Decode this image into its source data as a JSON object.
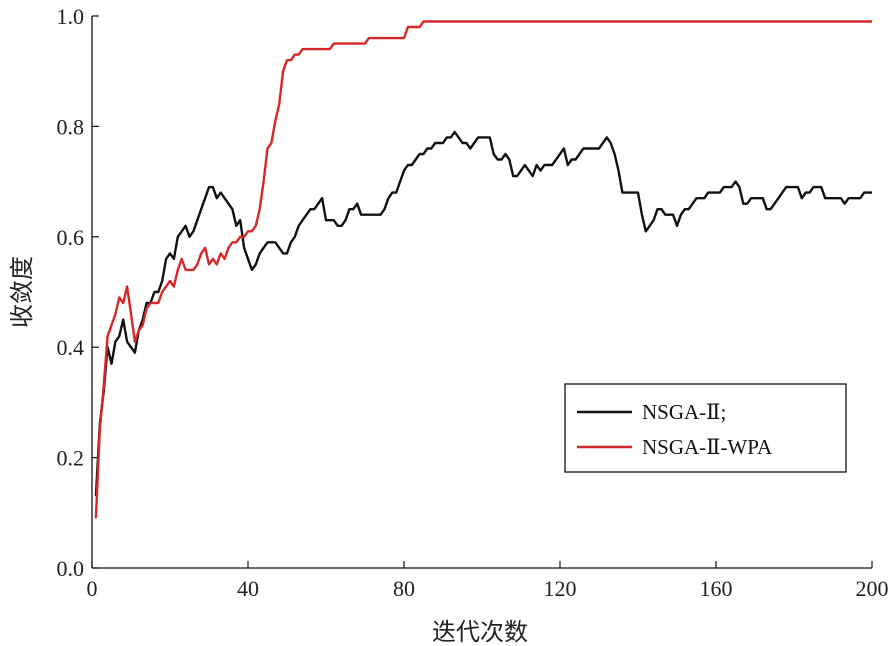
{
  "chart_data": {
    "type": "line",
    "xlabel": "迭代次数",
    "ylabel": "收敛度",
    "xlim": [
      0,
      200
    ],
    "ylim": [
      0,
      1.0
    ],
    "xticks": [
      "0",
      "40",
      "80",
      "120",
      "160",
      "200"
    ],
    "yticks": [
      "0.0",
      "0.2",
      "0.4",
      "0.6",
      "0.8",
      "1.0"
    ],
    "grid": false,
    "legend_position": "lower-right",
    "series": [
      {
        "name": "NSGA-Ⅱ;",
        "color": "#111111",
        "points": [
          [
            1,
            0.13
          ],
          [
            2,
            0.26
          ],
          [
            3,
            0.32
          ],
          [
            4,
            0.4
          ],
          [
            5,
            0.37
          ],
          [
            6,
            0.41
          ],
          [
            7,
            0.42
          ],
          [
            8,
            0.45
          ],
          [
            9,
            0.41
          ],
          [
            10,
            0.4
          ],
          [
            11,
            0.39
          ],
          [
            12,
            0.43
          ],
          [
            13,
            0.45
          ],
          [
            14,
            0.48
          ],
          [
            15,
            0.48
          ],
          [
            16,
            0.5
          ],
          [
            17,
            0.5
          ],
          [
            18,
            0.52
          ],
          [
            19,
            0.56
          ],
          [
            20,
            0.57
          ],
          [
            21,
            0.56
          ],
          [
            22,
            0.6
          ],
          [
            23,
            0.61
          ],
          [
            24,
            0.62
          ],
          [
            25,
            0.6
          ],
          [
            26,
            0.61
          ],
          [
            27,
            0.63
          ],
          [
            28,
            0.65
          ],
          [
            29,
            0.67
          ],
          [
            30,
            0.69
          ],
          [
            31,
            0.69
          ],
          [
            32,
            0.67
          ],
          [
            33,
            0.68
          ],
          [
            34,
            0.67
          ],
          [
            35,
            0.66
          ],
          [
            36,
            0.65
          ],
          [
            37,
            0.62
          ],
          [
            38,
            0.63
          ],
          [
            39,
            0.58
          ],
          [
            40,
            0.56
          ],
          [
            41,
            0.54
          ],
          [
            42,
            0.55
          ],
          [
            43,
            0.57
          ],
          [
            44,
            0.58
          ],
          [
            45,
            0.59
          ],
          [
            46,
            0.59
          ],
          [
            47,
            0.59
          ],
          [
            48,
            0.58
          ],
          [
            49,
            0.57
          ],
          [
            50,
            0.57
          ],
          [
            51,
            0.59
          ],
          [
            52,
            0.6
          ],
          [
            53,
            0.62
          ],
          [
            54,
            0.63
          ],
          [
            55,
            0.64
          ],
          [
            56,
            0.65
          ],
          [
            57,
            0.65
          ],
          [
            58,
            0.66
          ],
          [
            59,
            0.67
          ],
          [
            60,
            0.63
          ],
          [
            61,
            0.63
          ],
          [
            62,
            0.63
          ],
          [
            63,
            0.62
          ],
          [
            64,
            0.62
          ],
          [
            65,
            0.63
          ],
          [
            66,
            0.65
          ],
          [
            67,
            0.65
          ],
          [
            68,
            0.66
          ],
          [
            69,
            0.64
          ],
          [
            70,
            0.64
          ],
          [
            71,
            0.64
          ],
          [
            72,
            0.64
          ],
          [
            73,
            0.64
          ],
          [
            74,
            0.64
          ],
          [
            75,
            0.65
          ],
          [
            76,
            0.67
          ],
          [
            77,
            0.68
          ],
          [
            78,
            0.68
          ],
          [
            79,
            0.7
          ],
          [
            80,
            0.72
          ],
          [
            81,
            0.73
          ],
          [
            82,
            0.73
          ],
          [
            83,
            0.74
          ],
          [
            84,
            0.75
          ],
          [
            85,
            0.75
          ],
          [
            86,
            0.76
          ],
          [
            87,
            0.76
          ],
          [
            88,
            0.77
          ],
          [
            89,
            0.77
          ],
          [
            90,
            0.77
          ],
          [
            91,
            0.78
          ],
          [
            92,
            0.78
          ],
          [
            93,
            0.79
          ],
          [
            94,
            0.78
          ],
          [
            95,
            0.77
          ],
          [
            96,
            0.77
          ],
          [
            97,
            0.76
          ],
          [
            98,
            0.77
          ],
          [
            99,
            0.78
          ],
          [
            100,
            0.78
          ],
          [
            101,
            0.78
          ],
          [
            102,
            0.78
          ],
          [
            103,
            0.75
          ],
          [
            104,
            0.74
          ],
          [
            105,
            0.74
          ],
          [
            106,
            0.75
          ],
          [
            107,
            0.74
          ],
          [
            108,
            0.71
          ],
          [
            109,
            0.71
          ],
          [
            110,
            0.72
          ],
          [
            111,
            0.73
          ],
          [
            112,
            0.72
          ],
          [
            113,
            0.71
          ],
          [
            114,
            0.73
          ],
          [
            115,
            0.72
          ],
          [
            116,
            0.73
          ],
          [
            117,
            0.73
          ],
          [
            118,
            0.73
          ],
          [
            119,
            0.74
          ],
          [
            120,
            0.75
          ],
          [
            121,
            0.76
          ],
          [
            122,
            0.73
          ],
          [
            123,
            0.74
          ],
          [
            124,
            0.74
          ],
          [
            125,
            0.75
          ],
          [
            126,
            0.76
          ],
          [
            127,
            0.76
          ],
          [
            128,
            0.76
          ],
          [
            129,
            0.76
          ],
          [
            130,
            0.76
          ],
          [
            131,
            0.77
          ],
          [
            132,
            0.78
          ],
          [
            133,
            0.77
          ],
          [
            134,
            0.75
          ],
          [
            135,
            0.72
          ],
          [
            136,
            0.68
          ],
          [
            137,
            0.68
          ],
          [
            138,
            0.68
          ],
          [
            139,
            0.68
          ],
          [
            140,
            0.68
          ],
          [
            141,
            0.64
          ],
          [
            142,
            0.61
          ],
          [
            143,
            0.62
          ],
          [
            144,
            0.63
          ],
          [
            145,
            0.65
          ],
          [
            146,
            0.65
          ],
          [
            147,
            0.64
          ],
          [
            148,
            0.64
          ],
          [
            149,
            0.64
          ],
          [
            150,
            0.62
          ],
          [
            151,
            0.64
          ],
          [
            152,
            0.65
          ],
          [
            153,
            0.65
          ],
          [
            154,
            0.66
          ],
          [
            155,
            0.67
          ],
          [
            156,
            0.67
          ],
          [
            157,
            0.67
          ],
          [
            158,
            0.68
          ],
          [
            159,
            0.68
          ],
          [
            160,
            0.68
          ],
          [
            161,
            0.68
          ],
          [
            162,
            0.69
          ],
          [
            163,
            0.69
          ],
          [
            164,
            0.69
          ],
          [
            165,
            0.7
          ],
          [
            166,
            0.69
          ],
          [
            167,
            0.66
          ],
          [
            168,
            0.66
          ],
          [
            169,
            0.67
          ],
          [
            170,
            0.67
          ],
          [
            171,
            0.67
          ],
          [
            172,
            0.67
          ],
          [
            173,
            0.65
          ],
          [
            174,
            0.65
          ],
          [
            175,
            0.66
          ],
          [
            176,
            0.67
          ],
          [
            177,
            0.68
          ],
          [
            178,
            0.69
          ],
          [
            179,
            0.69
          ],
          [
            180,
            0.69
          ],
          [
            181,
            0.69
          ],
          [
            182,
            0.67
          ],
          [
            183,
            0.68
          ],
          [
            184,
            0.68
          ],
          [
            185,
            0.69
          ],
          [
            186,
            0.69
          ],
          [
            187,
            0.69
          ],
          [
            188,
            0.67
          ],
          [
            189,
            0.67
          ],
          [
            190,
            0.67
          ],
          [
            191,
            0.67
          ],
          [
            192,
            0.67
          ],
          [
            193,
            0.66
          ],
          [
            194,
            0.67
          ],
          [
            195,
            0.67
          ],
          [
            196,
            0.67
          ],
          [
            197,
            0.67
          ],
          [
            198,
            0.68
          ],
          [
            199,
            0.68
          ],
          [
            200,
            0.68
          ]
        ]
      },
      {
        "name": "NSGA-Ⅱ-WPA",
        "color": "#d62828",
        "points": [
          [
            1,
            0.09
          ],
          [
            2,
            0.25
          ],
          [
            3,
            0.33
          ],
          [
            4,
            0.42
          ],
          [
            5,
            0.44
          ],
          [
            6,
            0.46
          ],
          [
            7,
            0.49
          ],
          [
            8,
            0.48
          ],
          [
            9,
            0.51
          ],
          [
            10,
            0.46
          ],
          [
            11,
            0.41
          ],
          [
            12,
            0.43
          ],
          [
            13,
            0.44
          ],
          [
            14,
            0.47
          ],
          [
            15,
            0.48
          ],
          [
            16,
            0.48
          ],
          [
            17,
            0.48
          ],
          [
            18,
            0.5
          ],
          [
            19,
            0.51
          ],
          [
            20,
            0.52
          ],
          [
            21,
            0.51
          ],
          [
            22,
            0.54
          ],
          [
            23,
            0.56
          ],
          [
            24,
            0.54
          ],
          [
            25,
            0.54
          ],
          [
            26,
            0.54
          ],
          [
            27,
            0.55
          ],
          [
            28,
            0.57
          ],
          [
            29,
            0.58
          ],
          [
            30,
            0.55
          ],
          [
            31,
            0.56
          ],
          [
            32,
            0.55
          ],
          [
            33,
            0.57
          ],
          [
            34,
            0.56
          ],
          [
            35,
            0.58
          ],
          [
            36,
            0.59
          ],
          [
            37,
            0.59
          ],
          [
            38,
            0.6
          ],
          [
            39,
            0.6
          ],
          [
            40,
            0.61
          ],
          [
            41,
            0.61
          ],
          [
            42,
            0.62
          ],
          [
            43,
            0.65
          ],
          [
            44,
            0.7
          ],
          [
            45,
            0.76
          ],
          [
            46,
            0.77
          ],
          [
            47,
            0.81
          ],
          [
            48,
            0.84
          ],
          [
            49,
            0.9
          ],
          [
            50,
            0.92
          ],
          [
            51,
            0.92
          ],
          [
            52,
            0.93
          ],
          [
            53,
            0.93
          ],
          [
            54,
            0.94
          ],
          [
            55,
            0.94
          ],
          [
            56,
            0.94
          ],
          [
            57,
            0.94
          ],
          [
            58,
            0.94
          ],
          [
            59,
            0.94
          ],
          [
            60,
            0.94
          ],
          [
            61,
            0.94
          ],
          [
            62,
            0.95
          ],
          [
            63,
            0.95
          ],
          [
            64,
            0.95
          ],
          [
            65,
            0.95
          ],
          [
            66,
            0.95
          ],
          [
            67,
            0.95
          ],
          [
            68,
            0.95
          ],
          [
            69,
            0.95
          ],
          [
            70,
            0.95
          ],
          [
            71,
            0.96
          ],
          [
            72,
            0.96
          ],
          [
            73,
            0.96
          ],
          [
            74,
            0.96
          ],
          [
            75,
            0.96
          ],
          [
            76,
            0.96
          ],
          [
            77,
            0.96
          ],
          [
            78,
            0.96
          ],
          [
            79,
            0.96
          ],
          [
            80,
            0.96
          ],
          [
            81,
            0.98
          ],
          [
            82,
            0.98
          ],
          [
            83,
            0.98
          ],
          [
            84,
            0.98
          ],
          [
            85,
            0.99
          ],
          [
            86,
            0.99
          ],
          [
            87,
            0.99
          ],
          [
            88,
            0.99
          ],
          [
            89,
            0.99
          ],
          [
            90,
            0.99
          ],
          [
            100,
            0.99
          ],
          [
            120,
            0.99
          ],
          [
            140,
            0.99
          ],
          [
            160,
            0.99
          ],
          [
            180,
            0.99
          ],
          [
            200,
            0.99
          ]
        ]
      }
    ]
  }
}
